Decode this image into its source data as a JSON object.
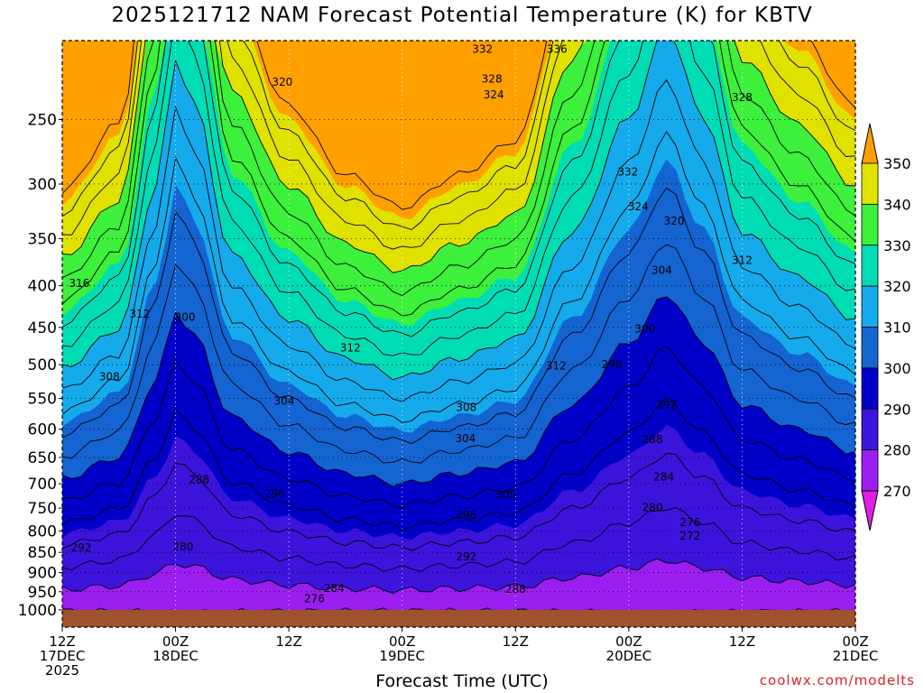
{
  "title": "2025121712 NAM Forecast Potential Temperature (K) for KBTV",
  "xlabel": "Forecast Time (UTC)",
  "credit": "coolwx.com/modelts",
  "chart_data": {
    "type": "heatmap",
    "title": "2025121712 NAM Forecast Potential Temperature (K) for KBTV",
    "xlabel": "Forecast Time (UTC)",
    "ylabel": "",
    "x_ticks": [
      {
        "hour": 0,
        "label1": "12Z",
        "label2": "17DEC",
        "label3": "2025"
      },
      {
        "hour": 12,
        "label1": "00Z",
        "label2": "18DEC",
        "label3": ""
      },
      {
        "hour": 24,
        "label1": "12Z",
        "label2": "",
        "label3": ""
      },
      {
        "hour": 36,
        "label1": "00Z",
        "label2": "19DEC",
        "label3": ""
      },
      {
        "hour": 48,
        "label1": "12Z",
        "label2": "",
        "label3": ""
      },
      {
        "hour": 60,
        "label1": "00Z",
        "label2": "20DEC",
        "label3": ""
      },
      {
        "hour": 72,
        "label1": "12Z",
        "label2": "",
        "label3": ""
      },
      {
        "hour": 84,
        "label1": "00Z",
        "label2": "21DEC",
        "label3": ""
      }
    ],
    "x_range_hours": [
      0,
      84
    ],
    "y_ticks": [
      250,
      300,
      350,
      400,
      450,
      500,
      550,
      600,
      650,
      700,
      750,
      800,
      850,
      900,
      950,
      1000
    ],
    "y_range_hpa": [
      200,
      1050
    ],
    "y_scale": "log-pressure",
    "colorbar": {
      "levels": [
        270,
        280,
        290,
        300,
        310,
        320,
        330,
        340,
        350
      ],
      "colors": [
        "#e21ee2",
        "#ff00ff",
        "#9b1ef0",
        "#3c14dc",
        "#0000c8",
        "#1464d2",
        "#14aaeb",
        "#00dcb4",
        "#3cf03c",
        "#e1e100",
        "#ffa000"
      ]
    },
    "contour_interval": 4,
    "ridge_profile": [
      {
        "hour": 0,
        "p": 690
      },
      {
        "hour": 6,
        "p": 650
      },
      {
        "hour": 10,
        "p": 520
      },
      {
        "hour": 12,
        "p": 430
      },
      {
        "hour": 14,
        "p": 460
      },
      {
        "hour": 18,
        "p": 580
      },
      {
        "hour": 24,
        "p": 640
      },
      {
        "hour": 30,
        "p": 680
      },
      {
        "hour": 36,
        "p": 700
      },
      {
        "hour": 42,
        "p": 680
      },
      {
        "hour": 48,
        "p": 660
      },
      {
        "hour": 54,
        "p": 560
      },
      {
        "hour": 60,
        "p": 470
      },
      {
        "hour": 64,
        "p": 410
      },
      {
        "hour": 68,
        "p": 470
      },
      {
        "hour": 72,
        "p": 560
      },
      {
        "hour": 78,
        "p": 600
      },
      {
        "hour": 84,
        "p": 640
      }
    ],
    "ground_pressure": 1000,
    "contour_labels": [
      {
        "v": "332",
        "hour": 44.5,
        "p": 205
      },
      {
        "v": "336",
        "hour": 52.4,
        "p": 205
      },
      {
        "v": "320",
        "hour": 23.3,
        "p": 225
      },
      {
        "v": "328",
        "hour": 45.5,
        "p": 223
      },
      {
        "v": "324",
        "hour": 45.7,
        "p": 233
      },
      {
        "v": "328",
        "hour": 72.0,
        "p": 235
      },
      {
        "v": "332",
        "hour": 59.9,
        "p": 290
      },
      {
        "v": "324",
        "hour": 61.0,
        "p": 320
      },
      {
        "v": "320",
        "hour": 64.8,
        "p": 333
      },
      {
        "v": "312",
        "hour": 72.0,
        "p": 372
      },
      {
        "v": "304",
        "hour": 63.5,
        "p": 383
      },
      {
        "v": "316",
        "hour": 1.8,
        "p": 397
      },
      {
        "v": "312",
        "hour": 8.2,
        "p": 433
      },
      {
        "v": "300",
        "hour": 13.0,
        "p": 437
      },
      {
        "v": "300",
        "hour": 61.7,
        "p": 452
      },
      {
        "v": "312",
        "hour": 30.5,
        "p": 477
      },
      {
        "v": "312",
        "hour": 52.3,
        "p": 502
      },
      {
        "v": "296",
        "hour": 58.2,
        "p": 500
      },
      {
        "v": "308",
        "hour": 5.0,
        "p": 517
      },
      {
        "v": "304",
        "hour": 23.5,
        "p": 554
      },
      {
        "v": "308",
        "hour": 42.8,
        "p": 564
      },
      {
        "v": "292",
        "hour": 64.0,
        "p": 560
      },
      {
        "v": "304",
        "hour": 42.7,
        "p": 616
      },
      {
        "v": "288",
        "hour": 62.5,
        "p": 618
      },
      {
        "v": "288",
        "hour": 14.5,
        "p": 692
      },
      {
        "v": "284",
        "hour": 63.7,
        "p": 687
      },
      {
        "v": "296",
        "hour": 22.5,
        "p": 720
      },
      {
        "v": "300",
        "hour": 47.0,
        "p": 722
      },
      {
        "v": "280",
        "hour": 62.5,
        "p": 749
      },
      {
        "v": "296",
        "hour": 42.8,
        "p": 765
      },
      {
        "v": "276",
        "hour": 66.5,
        "p": 781
      },
      {
        "v": "272",
        "hour": 66.5,
        "p": 811
      },
      {
        "v": "292",
        "hour": 2.0,
        "p": 839
      },
      {
        "v": "280",
        "hour": 12.8,
        "p": 837
      },
      {
        "v": "292",
        "hour": 42.8,
        "p": 860
      },
      {
        "v": "284",
        "hour": 28.8,
        "p": 941
      },
      {
        "v": "288",
        "hour": 48.0,
        "p": 943
      },
      {
        "v": "276",
        "hour": 26.7,
        "p": 969
      }
    ]
  }
}
